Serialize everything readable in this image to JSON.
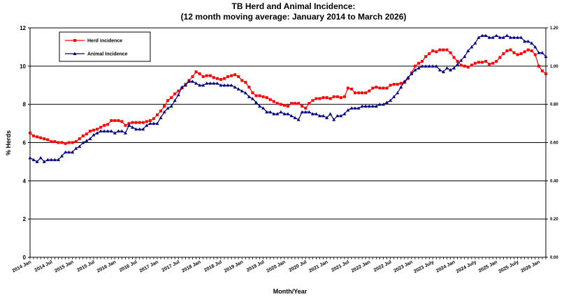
{
  "chart_data": {
    "type": "line",
    "title": "TB Herd and Animal Incidence:",
    "subtitle": "(12 month moving average: January 2014 to March 2026)",
    "x_label": "Month/Year",
    "y_label": "% Herds",
    "categories": [
      "2014 Jan",
      null,
      null,
      null,
      null,
      null,
      "2014 Jul",
      null,
      null,
      null,
      null,
      null,
      "2015 Jan",
      null,
      null,
      null,
      null,
      null,
      "2015 Jul",
      null,
      null,
      null,
      null,
      null,
      "2016 Jan",
      null,
      null,
      null,
      null,
      null,
      "2016 Jul",
      null,
      null,
      null,
      null,
      null,
      "2017 Jan",
      null,
      null,
      null,
      null,
      null,
      "2017 Jul",
      null,
      null,
      null,
      null,
      null,
      "2018 Jan",
      null,
      null,
      null,
      null,
      null,
      "2018 Jul",
      null,
      null,
      null,
      null,
      null,
      "2019 Jan",
      null,
      null,
      null,
      null,
      null,
      "2019 Jul",
      null,
      null,
      null,
      null,
      null,
      "2020 Jan",
      null,
      null,
      null,
      null,
      null,
      "2020 Jul",
      null,
      null,
      null,
      null,
      null,
      "2021 Jan",
      null,
      null,
      null,
      null,
      null,
      "2021 Jul",
      null,
      null,
      null,
      null,
      null,
      "2022 Jan",
      null,
      null,
      null,
      null,
      null,
      "2022 Jul",
      null,
      null,
      null,
      null,
      null,
      "2023 Jan",
      null,
      null,
      null,
      null,
      null,
      "2023 July",
      null,
      null,
      null,
      null,
      null,
      "2024 Jan",
      null,
      null,
      null,
      null,
      null,
      "2024 July",
      null,
      null,
      null,
      null,
      null,
      "2025 Jan",
      null,
      null,
      null,
      null,
      null,
      "2025 July",
      null,
      null,
      null,
      null,
      null,
      "2026 Jan",
      null,
      null
    ],
    "series": [
      {
        "name": "Herd incidence",
        "color": "#ff0000",
        "marker": "square",
        "values": [
          6.5,
          6.35,
          6.3,
          6.25,
          6.2,
          6.15,
          6.05,
          6.05,
          6.0,
          6.0,
          5.95,
          6.0,
          6.0,
          6.05,
          6.2,
          6.35,
          6.45,
          6.6,
          6.65,
          6.7,
          6.8,
          6.9,
          6.95,
          7.15,
          7.15,
          7.15,
          7.1,
          6.9,
          7.0,
          7.05,
          7.05,
          7.05,
          7.05,
          7.1,
          7.15,
          7.25,
          7.45,
          7.65,
          7.9,
          8.2,
          8.35,
          8.55,
          8.7,
          8.85,
          9.05,
          9.25,
          9.45,
          9.7,
          9.6,
          9.45,
          9.5,
          9.5,
          9.4,
          9.35,
          9.3,
          9.35,
          9.45,
          9.5,
          9.55,
          9.45,
          9.25,
          9.15,
          8.9,
          8.6,
          8.45,
          8.45,
          8.4,
          8.35,
          8.25,
          8.15,
          8.05,
          8.0,
          7.95,
          7.9,
          8.05,
          8.05,
          8.05,
          7.9,
          7.8,
          8.05,
          8.2,
          8.3,
          8.3,
          8.35,
          8.35,
          8.3,
          8.4,
          8.4,
          8.35,
          8.4,
          8.85,
          8.8,
          8.6,
          8.6,
          8.6,
          8.6,
          8.7,
          8.85,
          8.9,
          8.85,
          8.85,
          8.85,
          9.0,
          9.05,
          9.05,
          9.1,
          9.15,
          9.35,
          9.65,
          10.0,
          10.15,
          10.25,
          10.5,
          10.65,
          10.8,
          10.75,
          10.85,
          10.85,
          10.85,
          10.7,
          10.45,
          10.25,
          10.05,
          10.0,
          9.95,
          10.05,
          10.15,
          10.2,
          10.2,
          10.25,
          10.1,
          10.15,
          10.25,
          10.45,
          10.65,
          10.8,
          10.85,
          10.7,
          10.6,
          10.65,
          10.75,
          10.85,
          10.8,
          10.6,
          10.0,
          9.75,
          9.6
        ]
      },
      {
        "name": "Animal Incidence",
        "color": "#000080",
        "marker": "triangle",
        "axis": "y2",
        "values": [
          0.52,
          0.51,
          0.5,
          0.52,
          0.5,
          0.51,
          0.51,
          0.51,
          0.51,
          0.53,
          0.55,
          0.55,
          0.55,
          0.57,
          0.58,
          0.6,
          0.61,
          0.62,
          0.64,
          0.65,
          0.66,
          0.66,
          0.66,
          0.66,
          0.65,
          0.66,
          0.66,
          0.65,
          0.69,
          0.68,
          0.67,
          0.67,
          0.67,
          0.69,
          0.7,
          0.7,
          0.7,
          0.73,
          0.76,
          0.78,
          0.79,
          0.82,
          0.85,
          0.89,
          0.9,
          0.92,
          0.92,
          0.91,
          0.9,
          0.9,
          0.91,
          0.91,
          0.91,
          0.91,
          0.9,
          0.9,
          0.9,
          0.9,
          0.89,
          0.88,
          0.87,
          0.86,
          0.84,
          0.83,
          0.81,
          0.79,
          0.78,
          0.76,
          0.76,
          0.75,
          0.75,
          0.76,
          0.75,
          0.75,
          0.74,
          0.73,
          0.72,
          0.76,
          0.76,
          0.76,
          0.75,
          0.75,
          0.74,
          0.74,
          0.73,
          0.75,
          0.72,
          0.74,
          0.74,
          0.75,
          0.77,
          0.78,
          0.78,
          0.78,
          0.79,
          0.79,
          0.79,
          0.79,
          0.79,
          0.8,
          0.8,
          0.81,
          0.82,
          0.84,
          0.86,
          0.89,
          0.92,
          0.94,
          0.96,
          0.98,
          0.99,
          1.0,
          1.0,
          1.0,
          1.0,
          1.0,
          0.98,
          0.97,
          0.99,
          0.98,
          0.99,
          1.01,
          1.03,
          1.05,
          1.08,
          1.1,
          1.12,
          1.15,
          1.16,
          1.16,
          1.15,
          1.15,
          1.16,
          1.15,
          1.15,
          1.16,
          1.15,
          1.15,
          1.15,
          1.15,
          1.13,
          1.13,
          1.12,
          1.1,
          1.07,
          1.07,
          1.05
        ]
      }
    ],
    "ylim": [
      0,
      12
    ],
    "yticks": [
      0,
      2,
      4,
      6,
      8,
      10,
      12
    ],
    "y2lim": [
      0,
      1.2
    ],
    "y2ticks": [
      {
        "value": 0,
        "label": "0.00"
      },
      {
        "value": 0.2,
        "label": "0.20"
      },
      {
        "value": 0.4,
        "label": "0.40"
      },
      {
        "value": 0.6,
        "label": "0.60"
      },
      {
        "value": 0.8,
        "label": "0.80"
      },
      {
        "value": 1.0,
        "label": "1.00"
      },
      {
        "value": 1.2,
        "label": "1.20"
      }
    ],
    "grid": true,
    "legend": "upper left"
  }
}
